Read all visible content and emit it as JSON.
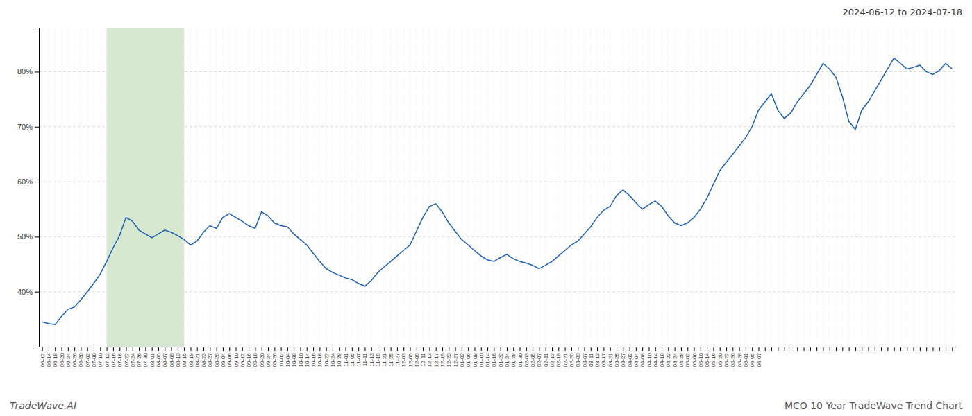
{
  "chart_data": {
    "type": "line",
    "title": "2024-06-12 to 2024-07-18",
    "annotations": [
      "TradeWave.AI",
      "MCO 10 Year TradeWave Trend Chart"
    ],
    "color": "#1a5eb8",
    "highlight": {
      "from": "07-12",
      "to": "08-15",
      "color": "#d6e8d0"
    },
    "ylim": [
      30,
      88
    ],
    "yticks": [
      {
        "value": 40,
        "label": "40%"
      },
      {
        "value": 50,
        "label": "50%"
      },
      {
        "value": 60,
        "label": "60%"
      },
      {
        "value": 70,
        "label": "70%"
      },
      {
        "value": 80,
        "label": "80%"
      }
    ],
    "grid": true,
    "categories": [
      "06-12",
      "06-14",
      "06-18",
      "06-20",
      "06-24",
      "06-26",
      "06-28",
      "07-02",
      "07-08",
      "07-10",
      "07-12",
      "07-16",
      "07-18",
      "07-22",
      "07-24",
      "07-26",
      "07-30",
      "08-01",
      "08-05",
      "08-07",
      "08-09",
      "08-13",
      "08-15",
      "08-19",
      "08-21",
      "08-23",
      "08-27",
      "08-29",
      "09-04",
      "09-06",
      "09-10",
      "09-12",
      "09-16",
      "09-18",
      "09-20",
      "09-24",
      "09-26",
      "10-02",
      "10-04",
      "10-08",
      "10-10",
      "10-14",
      "10-16",
      "10-18",
      "10-22",
      "10-24",
      "10-28",
      "11-01",
      "11-05",
      "11-07",
      "11-11",
      "11-13",
      "11-19",
      "11-21",
      "11-25",
      "11-27",
      "12-03",
      "12-05",
      "12-09",
      "12-11",
      "12-13",
      "12-17",
      "12-19",
      "12-23",
      "12-27",
      "01-02",
      "01-06",
      "01-08",
      "01-10",
      "01-14",
      "01-16",
      "01-22",
      "01-24",
      "01-28",
      "01-30",
      "02-03",
      "02-05",
      "02-07",
      "02-11",
      "02-13",
      "02-19",
      "02-21",
      "02-25",
      "03-03",
      "03-07",
      "03-11",
      "03-13",
      "03-17",
      "03-21",
      "03-25",
      "03-27",
      "04-02",
      "04-04",
      "04-08",
      "04-10",
      "04-14",
      "04-18",
      "04-22",
      "04-24",
      "04-28",
      "05-02",
      "05-06",
      "05-10",
      "05-14",
      "05-16",
      "05-20",
      "05-22",
      "05-26",
      "05-28",
      "06-01",
      "06-05",
      "06-07",
      null,
      null,
      null,
      null,
      null,
      null,
      null,
      null,
      null,
      null,
      null,
      null,
      null,
      null,
      null,
      null,
      null,
      null,
      null,
      null,
      null,
      null,
      null,
      null,
      null,
      null,
      null,
      null,
      null,
      null
    ],
    "values": [
      34.5,
      34.2,
      34.0,
      35.5,
      36.8,
      37.2,
      38.5,
      40.0,
      41.5,
      43.2,
      45.5,
      48.0,
      50.2,
      53.5,
      52.8,
      51.2,
      50.5,
      49.8,
      50.5,
      51.2,
      50.8,
      50.2,
      49.5,
      48.5,
      49.2,
      50.8,
      52.0,
      51.5,
      53.5,
      54.2,
      53.5,
      52.8,
      52.0,
      51.5,
      54.5,
      53.8,
      52.5,
      52.0,
      51.8,
      50.5,
      49.5,
      48.5,
      47.0,
      45.5,
      44.2,
      43.5,
      43.0,
      42.5,
      42.2,
      41.5,
      41.0,
      42.0,
      43.5,
      44.5,
      45.5,
      46.5,
      47.5,
      48.5,
      51.0,
      53.5,
      55.5,
      56.0,
      54.5,
      52.5,
      51.0,
      49.5,
      48.5,
      47.5,
      46.5,
      45.8,
      45.5,
      46.2,
      46.8,
      46.0,
      45.5,
      45.2,
      44.8,
      44.2,
      44.8,
      45.5,
      46.5,
      47.5,
      48.5,
      49.2,
      50.5,
      51.8,
      53.5,
      54.8,
      55.5,
      57.5,
      58.5,
      57.5,
      56.2,
      55.0,
      55.8,
      56.5,
      55.5,
      53.8,
      52.5,
      52.0,
      52.5,
      53.5,
      55.0,
      57.0,
      59.5,
      62.0,
      63.5,
      65.0,
      66.5,
      68.0,
      70.0,
      73.0,
      74.5,
      76.0,
      73.0,
      71.5,
      72.5,
      74.5,
      76.0,
      77.5,
      79.5,
      81.5,
      80.5,
      79.0,
      75.5,
      71.0,
      69.5,
      73.0,
      74.5,
      76.5,
      78.5,
      80.5,
      82.5,
      81.5,
      80.5,
      80.8,
      81.2,
      80.0,
      79.5,
      80.2,
      81.5,
      80.5
    ]
  }
}
